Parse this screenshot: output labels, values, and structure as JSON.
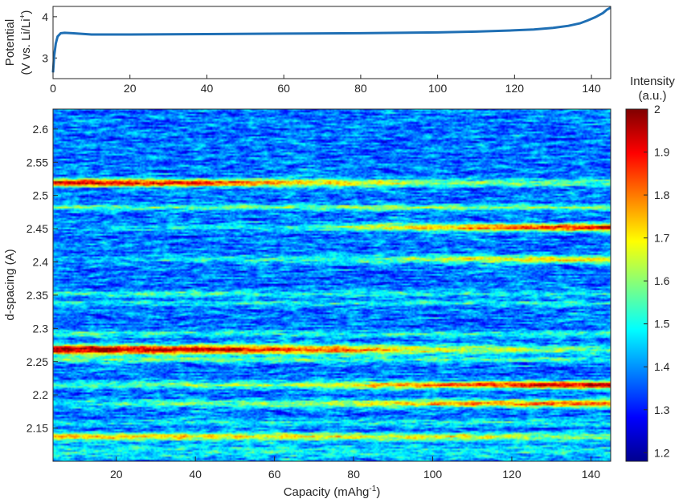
{
  "chart_data": [
    {
      "type": "line",
      "name": "voltage-profile",
      "xlabel": "",
      "ylabel_line1": "Potential",
      "ylabel_line2": "(V vs. Li/Li",
      "ylabel_sup": "+",
      "ylabel_close": ")",
      "xlim": [
        0,
        145
      ],
      "ylim": [
        2.5,
        4.25
      ],
      "xticks": [
        0,
        20,
        40,
        60,
        80,
        100,
        120,
        140
      ],
      "yticks": [
        3,
        4
      ],
      "line_color": "#1f6fb4",
      "series": [
        {
          "x": [
            0,
            0.3,
            0.7,
            1.2,
            2,
            3,
            5,
            10,
            20,
            40,
            60,
            80,
            100,
            110,
            120,
            125,
            130,
            134,
            137,
            139,
            141,
            143,
            144,
            145
          ],
          "y": [
            2.65,
            3.05,
            3.35,
            3.52,
            3.6,
            3.61,
            3.6,
            3.57,
            3.57,
            3.58,
            3.59,
            3.6,
            3.62,
            3.64,
            3.67,
            3.69,
            3.73,
            3.78,
            3.84,
            3.91,
            3.99,
            4.09,
            4.17,
            4.22
          ]
        }
      ]
    },
    {
      "type": "heatmap",
      "name": "diffraction-map",
      "xlabel": "Capacity (mAhg",
      "xlabel_sup": "-1",
      "xlabel_close": ")",
      "ylabel": "d-spacing (A)",
      "xlim": [
        4,
        145
      ],
      "ylim": [
        2.1,
        2.63
      ],
      "xticks": [
        20,
        40,
        60,
        80,
        100,
        120,
        140
      ],
      "yticks": [
        2.15,
        2.2,
        2.25,
        2.3,
        2.35,
        2.4,
        2.45,
        2.5,
        2.55,
        2.6
      ],
      "colorbar": {
        "title_line1": "Intensity",
        "title_line2": "(a.u.)",
        "range": [
          1.18,
          2.0
        ],
        "ticks": [
          1.2,
          1.3,
          1.4,
          1.5,
          1.6,
          1.7,
          1.8,
          1.9,
          2
        ],
        "colormap": "jet"
      },
      "background_level": 1.38,
      "bands": [
        {
          "d": 2.519,
          "width": 0.004,
          "x": [
            4,
            40,
            70,
            100,
            145
          ],
          "peak": [
            1.95,
            1.92,
            1.75,
            1.62,
            1.55
          ]
        },
        {
          "d": 2.482,
          "width": 0.003,
          "x": [
            4,
            60,
            100,
            145
          ],
          "peak": [
            1.55,
            1.58,
            1.62,
            1.6
          ]
        },
        {
          "d": 2.452,
          "width": 0.004,
          "x": [
            4,
            60,
            90,
            120,
            145
          ],
          "peak": [
            1.42,
            1.5,
            1.68,
            1.85,
            1.93
          ]
        },
        {
          "d": 2.404,
          "width": 0.004,
          "x": [
            4,
            80,
            120,
            145
          ],
          "peak": [
            1.42,
            1.55,
            1.7,
            1.72
          ]
        },
        {
          "d": 2.352,
          "width": 0.003,
          "x": [
            4,
            70,
            145
          ],
          "peak": [
            1.55,
            1.52,
            1.5
          ]
        },
        {
          "d": 2.338,
          "width": 0.003,
          "x": [
            4,
            145
          ],
          "peak": [
            1.5,
            1.5
          ]
        },
        {
          "d": 2.292,
          "width": 0.003,
          "x": [
            4,
            145
          ],
          "peak": [
            1.55,
            1.52
          ]
        },
        {
          "d": 2.268,
          "width": 0.005,
          "x": [
            4,
            40,
            70,
            100,
            145
          ],
          "peak": [
            2.0,
            1.97,
            1.85,
            1.68,
            1.55
          ]
        },
        {
          "d": 2.253,
          "width": 0.003,
          "x": [
            4,
            145
          ],
          "peak": [
            1.58,
            1.52
          ]
        },
        {
          "d": 2.215,
          "width": 0.004,
          "x": [
            4,
            60,
            100,
            145
          ],
          "peak": [
            1.5,
            1.62,
            1.8,
            1.97
          ]
        },
        {
          "d": 2.187,
          "width": 0.004,
          "x": [
            4,
            60,
            100,
            145
          ],
          "peak": [
            1.5,
            1.6,
            1.75,
            1.85
          ]
        },
        {
          "d": 2.158,
          "width": 0.004,
          "x": [
            4,
            145
          ],
          "peak": [
            1.48,
            1.5
          ]
        },
        {
          "d": 2.137,
          "width": 0.004,
          "x": [
            4,
            80,
            145
          ],
          "peak": [
            1.72,
            1.7,
            1.6
          ]
        },
        {
          "d": 2.115,
          "width": 0.008,
          "x": [
            4,
            145
          ],
          "peak": [
            1.5,
            1.48
          ]
        }
      ]
    }
  ]
}
